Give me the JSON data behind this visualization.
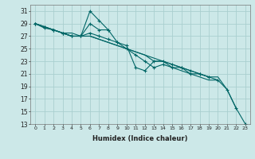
{
  "xlabel": "Humidex (Indice chaleur)",
  "ylabel": "",
  "background_color": "#cce8e8",
  "grid_color": "#aacfcf",
  "line_color": "#006666",
  "xlim": [
    -0.5,
    23.5
  ],
  "ylim": [
    13,
    32
  ],
  "yticks": [
    13,
    15,
    17,
    19,
    21,
    23,
    25,
    27,
    29,
    31
  ],
  "xticks": [
    0,
    1,
    2,
    3,
    4,
    5,
    6,
    7,
    8,
    9,
    10,
    11,
    12,
    13,
    14,
    15,
    16,
    17,
    18,
    19,
    20,
    21,
    22,
    23
  ],
  "series": [
    {
      "x": [
        0,
        1,
        2,
        3,
        4,
        5,
        6,
        7,
        8
      ],
      "y": [
        29,
        28.3,
        28,
        27.5,
        27,
        27,
        31,
        29.5,
        28
      ],
      "has_markers": true
    },
    {
      "x": [
        0,
        1,
        2,
        3,
        4,
        5,
        6,
        7,
        8,
        9,
        10,
        11,
        12,
        13,
        14,
        15,
        16,
        17,
        18,
        19
      ],
      "y": [
        29,
        28.5,
        28,
        27.5,
        27,
        27,
        29,
        28,
        28,
        26,
        25.5,
        22,
        21.5,
        23,
        23,
        22.5,
        22,
        21,
        21,
        20.5
      ],
      "has_markers": true
    },
    {
      "x": [
        0,
        1,
        2,
        3,
        4,
        5,
        6,
        7,
        8,
        9,
        10,
        11,
        12,
        13,
        14,
        15,
        16,
        17,
        18,
        19,
        20,
        21,
        22,
        23
      ],
      "y": [
        29,
        28.5,
        28,
        27.5,
        27,
        27,
        27.5,
        27,
        26.5,
        26,
        25,
        24,
        23,
        22,
        22.5,
        22,
        22,
        21.5,
        21,
        20.5,
        20,
        18.5,
        15.5,
        13
      ],
      "has_markers": true
    },
    {
      "x": [
        0,
        1,
        2,
        3,
        4,
        5,
        6,
        7,
        8,
        9,
        10,
        11,
        12,
        13,
        14,
        15,
        16,
        17,
        18,
        19,
        20,
        21,
        22
      ],
      "y": [
        29,
        28.5,
        28,
        27.5,
        27,
        27,
        27,
        26.5,
        26,
        25.5,
        25,
        24.5,
        24,
        23.5,
        23,
        22.5,
        22,
        21.5,
        21,
        20.5,
        20.5,
        18.5,
        15.5
      ],
      "has_markers": false
    },
    {
      "x": [
        0,
        1,
        2,
        3,
        4,
        5,
        6,
        7,
        8,
        9,
        10,
        11,
        12,
        13,
        14,
        15,
        16,
        17,
        18,
        19,
        20
      ],
      "y": [
        29,
        28.5,
        28,
        27.5,
        27.5,
        27,
        27,
        26.5,
        26,
        25.5,
        25,
        24.5,
        24,
        23,
        23,
        22,
        21.5,
        21,
        20.5,
        20,
        20
      ],
      "has_markers": false
    }
  ]
}
